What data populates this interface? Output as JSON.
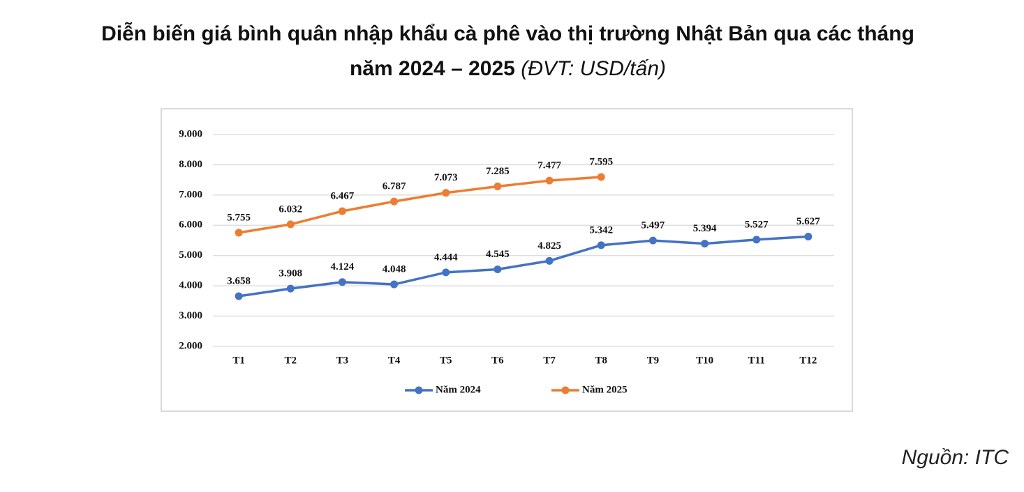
{
  "chart_data": {
    "type": "line",
    "title": "Diễn biến giá bình quân nhập khẩu cà phê vào thị trường Nhật Bản qua các tháng năm 2024 – 2025",
    "subtitle": "(ĐVT: USD/tấn)",
    "source": "Nguồn: ITC",
    "categories": [
      "T1",
      "T2",
      "T3",
      "T4",
      "T5",
      "T6",
      "T7",
      "T8",
      "T9",
      "T10",
      "T11",
      "T12"
    ],
    "series": [
      {
        "name": "Năm 2024",
        "color": "#4472c4",
        "values": [
          3658,
          3908,
          4124,
          4048,
          4444,
          4545,
          4825,
          5342,
          5497,
          5394,
          5527,
          5627
        ],
        "value_labels": [
          "3.658",
          "3.908",
          "4.124",
          "4.048",
          "4.444",
          "4.545",
          "4.825",
          "5.342",
          "5.497",
          "5.394",
          "5.527",
          "5.627"
        ]
      },
      {
        "name": "Năm 2025",
        "color": "#ed7d31",
        "values": [
          5755,
          6032,
          6467,
          6787,
          7073,
          7285,
          7477,
          7595,
          null,
          null,
          null,
          null
        ],
        "value_labels": [
          "5.755",
          "6.032",
          "6.467",
          "6.787",
          "7.073",
          "7.285",
          "7.477",
          "7.595",
          null,
          null,
          null,
          null
        ]
      }
    ],
    "ylim": [
      2000,
      9000
    ],
    "yticks": [
      {
        "value": 2000,
        "label": "2.000"
      },
      {
        "value": 3000,
        "label": "3.000"
      },
      {
        "value": 4000,
        "label": "4.000"
      },
      {
        "value": 5000,
        "label": "5.000"
      },
      {
        "value": 6000,
        "label": "6.000"
      },
      {
        "value": 7000,
        "label": "7.000"
      },
      {
        "value": 8000,
        "label": "8.000"
      },
      {
        "value": 9000,
        "label": "9.000"
      }
    ],
    "grid": true,
    "legend": "bottom"
  }
}
